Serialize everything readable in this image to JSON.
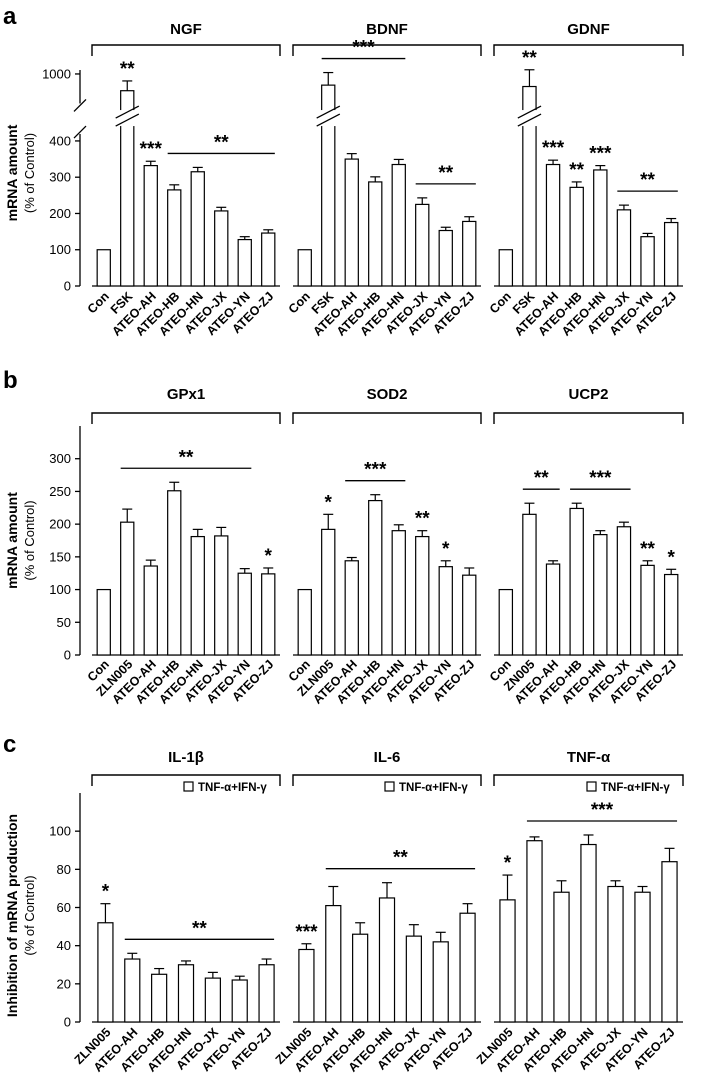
{
  "panels": [
    {
      "id": "a",
      "letter": "a",
      "ylabel": "mRNA amount",
      "ylabel_sub": "(% of Control)",
      "chart_data": [
        {
          "type": "bar",
          "title": "NGF",
          "categories": [
            "Con",
            "FSK",
            "ATEO-AH",
            "ATEO-HB",
            "ATEO-HN",
            "ATEO-JX",
            "ATEO-YN",
            "ATEO-ZJ"
          ],
          "values": [
            100,
            940,
            332,
            265,
            315,
            207,
            128,
            146
          ],
          "errors": [
            0,
            35,
            12,
            14,
            12,
            10,
            8,
            9
          ],
          "ylim": [
            0,
            1050
          ],
          "ybreak": [
            430,
            880
          ],
          "yticks": [
            0,
            100,
            200,
            300,
            400,
            1000
          ],
          "annotations": [
            {
              "text": "**",
              "index": 1
            },
            {
              "text": "***",
              "index": 2
            },
            {
              "text": "**",
              "from": 3,
              "to": 7
            }
          ]
        },
        {
          "type": "bar",
          "title": "BDNF",
          "categories": [
            "Con",
            "FSK",
            "ATEO-AH",
            "ATEO-HB",
            "ATEO-HN",
            "ATEO-JX",
            "ATEO-YN",
            "ATEO-ZJ"
          ],
          "values": [
            100,
            960,
            350,
            287,
            335,
            225,
            153,
            178
          ],
          "errors": [
            0,
            45,
            15,
            14,
            14,
            18,
            9,
            13
          ],
          "ylim": [
            0,
            1050
          ],
          "ybreak": [
            430,
            880
          ],
          "yticks": [
            0,
            100,
            200,
            300,
            400,
            1000
          ],
          "annotations": [
            {
              "text": "***",
              "from": 1,
              "to": 4
            },
            {
              "text": "**",
              "from": 5,
              "to": 7
            }
          ]
        },
        {
          "type": "bar",
          "title": "GDNF",
          "categories": [
            "Con",
            "FSK",
            "ATEO-AH",
            "ATEO-HB",
            "ATEO-HN",
            "ATEO-JX",
            "ATEO-YN",
            "ATEO-ZJ"
          ],
          "values": [
            100,
            955,
            335,
            272,
            320,
            210,
            136,
            175
          ],
          "errors": [
            0,
            60,
            12,
            15,
            12,
            13,
            9,
            11
          ],
          "ylim": [
            0,
            1050
          ],
          "ybreak": [
            430,
            880
          ],
          "yticks": [
            0,
            100,
            200,
            300,
            400,
            1000
          ],
          "annotations": [
            {
              "text": "**",
              "index": 1
            },
            {
              "text": "***",
              "index": 2
            },
            {
              "text": "**",
              "index": 3
            },
            {
              "text": "***",
              "index": 4
            },
            {
              "text": "**",
              "from": 5,
              "to": 7
            }
          ]
        }
      ]
    },
    {
      "id": "b",
      "letter": "b",
      "ylabel": "mRNA amount",
      "ylabel_sub": "(% of Control)",
      "chart_data": [
        {
          "type": "bar",
          "title": "GPx1",
          "categories": [
            "Con",
            "ZLN005",
            "ATEO-AH",
            "ATEO-HB",
            "ATEO-HN",
            "ATEO-JX",
            "ATEO-YN",
            "ATEO-ZJ"
          ],
          "values": [
            100,
            203,
            136,
            251,
            181,
            182,
            125,
            124
          ],
          "errors": [
            0,
            20,
            9,
            13,
            11,
            13,
            7,
            9
          ],
          "ylim": [
            0,
            350
          ],
          "yticks": [
            0,
            50,
            100,
            150,
            200,
            250,
            300
          ],
          "annotations": [
            {
              "text": "**",
              "from": 1,
              "to": 6
            },
            {
              "text": "*",
              "index": 7
            }
          ]
        },
        {
          "type": "bar",
          "title": "SOD2",
          "categories": [
            "Con",
            "ZLN005",
            "ATEO-AH",
            "ATEO-HB",
            "ATEO-HN",
            "ATEO-JX",
            "ATEO-YN",
            "ATEO-ZJ"
          ],
          "values": [
            100,
            192,
            144,
            236,
            190,
            181,
            135,
            122
          ],
          "errors": [
            0,
            23,
            5,
            9,
            9,
            9,
            9,
            11
          ],
          "ylim": [
            0,
            350
          ],
          "yticks": [
            0,
            50,
            100,
            150,
            200,
            250,
            300
          ],
          "annotations": [
            {
              "text": "*",
              "index": 1
            },
            {
              "text": "***",
              "from": 2,
              "to": 4
            },
            {
              "text": "**",
              "index": 5
            },
            {
              "text": "*",
              "index": 6
            }
          ]
        },
        {
          "type": "bar",
          "title": "UCP2",
          "categories": [
            "Con",
            "ZN005",
            "ATEO-AH",
            "ATEO-HB",
            "ATEO-HN",
            "ATEO-JX",
            "ATEO-YN",
            "ATEO-ZJ"
          ],
          "values": [
            100,
            215,
            139,
            224,
            184,
            196,
            137,
            123
          ],
          "errors": [
            0,
            17,
            5,
            8,
            6,
            7,
            7,
            8
          ],
          "ylim": [
            0,
            350
          ],
          "yticks": [
            0,
            50,
            100,
            150,
            200,
            250,
            300
          ],
          "annotations": [
            {
              "text": "**",
              "from": 1,
              "to": 2
            },
            {
              "text": "***",
              "from": 3,
              "to": 5
            },
            {
              "text": "**",
              "index": 6
            },
            {
              "text": "*",
              "index": 7
            }
          ]
        }
      ]
    },
    {
      "id": "c",
      "letter": "c",
      "ylabel": "Inhibition of mRNA production",
      "ylabel_sub": "(% of Control)",
      "chart_data": [
        {
          "type": "bar",
          "title": "IL-1β",
          "legend": "TNF-α+IFN-γ",
          "categories": [
            "ZLN005",
            "ATEO-AH",
            "ATEO-HB",
            "ATEO-HN",
            "ATEO-JX",
            "ATEO-YN",
            "ATEO-ZJ"
          ],
          "values": [
            52,
            33,
            25,
            30,
            23,
            22,
            30
          ],
          "errors": [
            10,
            3,
            3,
            2,
            3,
            2,
            3
          ],
          "ylim": [
            0,
            120
          ],
          "yticks": [
            0,
            20,
            40,
            60,
            80,
            100
          ],
          "annotations": [
            {
              "text": "*",
              "index": 0
            },
            {
              "text": "**",
              "from": 1,
              "to": 6
            }
          ]
        },
        {
          "type": "bar",
          "title": "IL-6",
          "legend": "TNF-α+IFN-γ",
          "categories": [
            "ZLN005",
            "ATEO-AH",
            "ATEO-HB",
            "ATEO-HN",
            "ATEO-JX",
            "ATEO-YN",
            "ATEO-ZJ"
          ],
          "values": [
            38,
            61,
            46,
            65,
            45,
            42,
            57
          ],
          "errors": [
            3,
            10,
            6,
            8,
            6,
            5,
            5
          ],
          "ylim": [
            0,
            120
          ],
          "yticks": [
            0,
            20,
            40,
            60,
            80,
            100
          ],
          "annotations": [
            {
              "text": "***",
              "index": 0
            },
            {
              "text": "**",
              "from": 1,
              "to": 6
            }
          ]
        },
        {
          "type": "bar",
          "title": "TNF-α",
          "legend": "TNF-α+IFN-γ",
          "categories": [
            "ZLN005",
            "ATEO-AH",
            "ATEO-HB",
            "ATEO-HN",
            "ATEO-JX",
            "ATEO-YN",
            "ATEO-ZJ"
          ],
          "values": [
            64,
            95,
            68,
            93,
            71,
            68,
            84
          ],
          "errors": [
            13,
            2,
            6,
            5,
            3,
            3,
            7
          ],
          "ylim": [
            0,
            120
          ],
          "yticks": [
            0,
            20,
            40,
            60,
            80,
            100
          ],
          "annotations": [
            {
              "text": "*",
              "index": 0
            },
            {
              "text": "***",
              "from": 1,
              "to": 6
            }
          ]
        }
      ]
    }
  ]
}
